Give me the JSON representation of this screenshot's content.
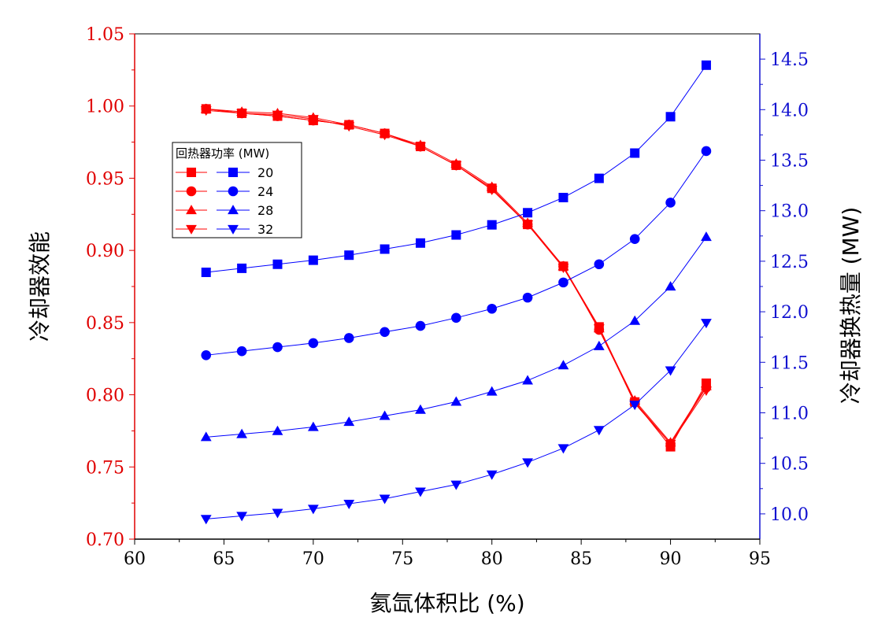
{
  "chart_data": {
    "type": "line",
    "xlabel": "氦氙体积比 (%)",
    "ylabel_left": "冷却器效能",
    "ylabel_right": "冷却器换热量 (MW)",
    "xlim": [
      60,
      95
    ],
    "ylim_left": [
      0.7,
      1.05
    ],
    "ylim_right": [
      9.75,
      14.75
    ],
    "x_ticks": [
      "60",
      "65",
      "70",
      "75",
      "80",
      "85",
      "90",
      "95"
    ],
    "y_left_ticks": [
      "0.70",
      "0.75",
      "0.80",
      "0.85",
      "0.90",
      "0.95",
      "1.00",
      "1.05"
    ],
    "y_right_ticks": [
      "10.0",
      "10.5",
      "11.0",
      "11.5",
      "12.0",
      "12.5",
      "13.0",
      "13.5",
      "14.0",
      "14.5"
    ],
    "legend": {
      "title": "回热器功率 (MW)",
      "placement": "upper-left"
    },
    "x": [
      64,
      66,
      68,
      70,
      72,
      74,
      76,
      78,
      80,
      82,
      84,
      86,
      88,
      90,
      92
    ],
    "series": [
      {
        "name": "20",
        "axis": "left",
        "color": "#ff0000",
        "marker": "square",
        "values": [
          0.998,
          0.995,
          0.993,
          0.99,
          0.987,
          0.981,
          0.972,
          0.959,
          0.943,
          0.918,
          0.889,
          0.847,
          0.795,
          0.764,
          0.808
        ]
      },
      {
        "name": "24",
        "axis": "left",
        "color": "#ff0000",
        "marker": "circle",
        "values": [
          0.998,
          0.995,
          0.993,
          0.99,
          0.987,
          0.981,
          0.972,
          0.959,
          0.943,
          0.918,
          0.889,
          0.845,
          0.795,
          0.766,
          0.805
        ]
      },
      {
        "name": "28",
        "axis": "left",
        "color": "#ff0000",
        "marker": "triangle-up",
        "values": [
          0.998,
          0.996,
          0.995,
          0.992,
          0.987,
          0.981,
          0.973,
          0.96,
          0.944,
          0.919,
          0.889,
          0.846,
          0.796,
          0.767,
          0.806
        ]
      },
      {
        "name": "32",
        "axis": "left",
        "color": "#ff0000",
        "marker": "triangle-down",
        "values": [
          0.997,
          0.995,
          0.994,
          0.991,
          0.986,
          0.98,
          0.972,
          0.959,
          0.942,
          0.918,
          0.888,
          0.846,
          0.794,
          0.766,
          0.803
        ]
      },
      {
        "name": "20",
        "axis": "right",
        "color": "#0000ff",
        "marker": "square",
        "values": [
          12.39,
          12.43,
          12.47,
          12.51,
          12.56,
          12.62,
          12.68,
          12.76,
          12.86,
          12.98,
          13.13,
          13.32,
          13.57,
          13.93,
          14.44
        ]
      },
      {
        "name": "24",
        "axis": "right",
        "color": "#0000ff",
        "marker": "circle",
        "values": [
          11.57,
          11.61,
          11.65,
          11.69,
          11.74,
          11.8,
          11.86,
          11.94,
          12.03,
          12.14,
          12.29,
          12.47,
          12.72,
          13.08,
          13.59
        ]
      },
      {
        "name": "28",
        "axis": "right",
        "color": "#0000ff",
        "marker": "triangle-up",
        "values": [
          10.76,
          10.79,
          10.82,
          10.86,
          10.91,
          10.97,
          11.03,
          11.11,
          11.21,
          11.32,
          11.47,
          11.66,
          11.91,
          12.25,
          12.74
        ]
      },
      {
        "name": "32",
        "axis": "right",
        "color": "#0000ff",
        "marker": "triangle-down",
        "values": [
          9.95,
          9.98,
          10.01,
          10.05,
          10.1,
          10.15,
          10.22,
          10.29,
          10.39,
          10.51,
          10.65,
          10.83,
          11.08,
          11.42,
          11.89
        ]
      }
    ]
  }
}
